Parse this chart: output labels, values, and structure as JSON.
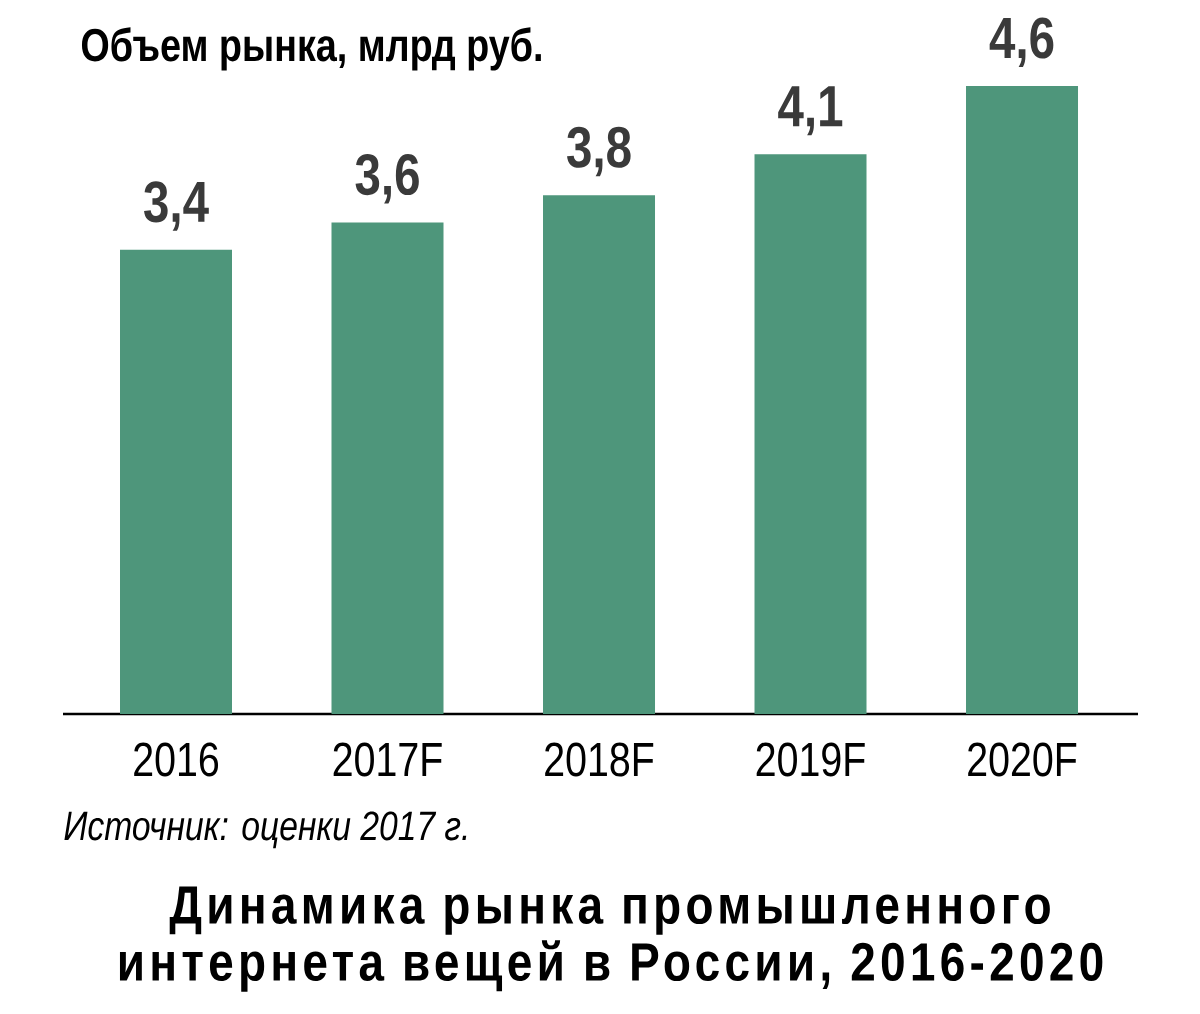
{
  "chart_data": {
    "type": "bar",
    "title": "Динамика рынка промышленного интернета вещей в России, 2016-2020",
    "ylabel": "Объем рынка, млрд руб.",
    "annotations": [
      "Источник: оценки 2017 г."
    ],
    "categories": [
      "2016",
      "2017F",
      "2018F",
      "2019F",
      "2020F"
    ],
    "values": [
      3.4,
      3.6,
      3.8,
      4.1,
      4.6
    ],
    "value_labels": [
      "3,4",
      "3,6",
      "3,8",
      "4,1",
      "4,6"
    ],
    "color": "#4e967b",
    "ylim": [
      0,
      4.6
    ]
  }
}
